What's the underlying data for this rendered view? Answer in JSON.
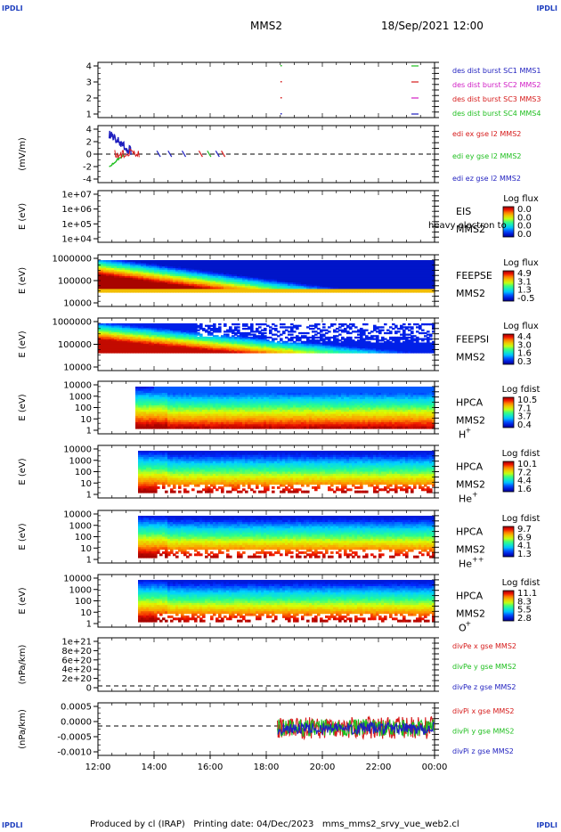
{
  "header": {
    "corner_text": "IPDLI",
    "title": "MMS2",
    "datetime": "18/Sep/2021 12:00"
  },
  "footer": {
    "text": "Produced by cl (IRAP)   Printing date: 04/Dec/2023   mms_mms2_srvy_vue_web2.cl"
  },
  "colors": {
    "mms1": "#1f1fbf",
    "mms2": "#d61a1a",
    "mms3": "#d11dc5",
    "mms4": "#1fbf1f"
  },
  "chart_data": {
    "type": "multi-panel",
    "x_ticks": [
      "12:00",
      "14:00",
      "16:00",
      "18:00",
      "20:00",
      "22:00",
      "00:00"
    ],
    "panels": [
      {
        "id": "des-dist",
        "type": "line",
        "yticks": [
          "4",
          "3",
          "2",
          "1"
        ],
        "ylim": [
          0.7,
          4.5
        ],
        "legend": [
          {
            "label": "des dist burst SC1 MMS1",
            "color": "#1f1fbf"
          },
          {
            "label": "des dist burst SC2 MMS2",
            "color": "#d11dc5"
          },
          {
            "label": "des dist burst SC3 MMS3",
            "color": "#d61a1a"
          },
          {
            "label": "des dist burst SC4 MMS4",
            "color": "#1fbf1f"
          }
        ]
      },
      {
        "id": "edi-e",
        "type": "line",
        "ylabel": "(mV/m)",
        "yticks": [
          "4",
          "2",
          "0",
          "-2",
          "-4"
        ],
        "ylim": [
          -4.5,
          4.5
        ],
        "legend": [
          {
            "label": "edi ex gse l2 MMS2",
            "color": "#d61a1a"
          },
          {
            "label": "edi ey gse l2 MMS2",
            "color": "#1fbf1f"
          },
          {
            "label": "edi ez gse l2 MMS2",
            "color": "#1f1fbf"
          }
        ]
      },
      {
        "id": "eis",
        "type": "heatmap",
        "ylabel": "E (eV)",
        "yticks": [
          "1e+07",
          "1e+06",
          "1e+05",
          "1e+04"
        ],
        "instrument": [
          "EIS",
          "MMS2"
        ],
        "overlay": "heavy electron to",
        "cbar_title": "Log flux",
        "cbar_ticks": [
          "0.0",
          "0.0",
          "0.0",
          "0.0"
        ]
      },
      {
        "id": "feepse",
        "type": "heatmap",
        "ylabel": "E (eV)",
        "yticks": [
          "1000000",
          "100000",
          "10000"
        ],
        "instrument": [
          "FEEPSE",
          "MMS2"
        ],
        "cbar_title": "Log flux",
        "cbar_ticks": [
          "4.9",
          "3.1",
          "1.3",
          "-0.5"
        ]
      },
      {
        "id": "feepsi",
        "type": "heatmap",
        "ylabel": "E (eV)",
        "yticks": [
          "1000000",
          "100000",
          "10000"
        ],
        "instrument": [
          "FEEPSI",
          "MMS2"
        ],
        "cbar_title": "Log flux",
        "cbar_ticks": [
          "4.4",
          "3.0",
          "1.6",
          "0.3"
        ]
      },
      {
        "id": "hpca-h",
        "type": "heatmap",
        "ylabel": "E (eV)",
        "yticks": [
          "10000",
          "1000",
          "100",
          "10",
          "1"
        ],
        "instrument": [
          "HPCA",
          "MMS2"
        ],
        "species": "H",
        "species_sup": "+",
        "cbar_title": "Log fdist",
        "cbar_ticks": [
          "10.5",
          "7.1",
          "3.7",
          "0.4"
        ]
      },
      {
        "id": "hpca-he",
        "type": "heatmap",
        "ylabel": "E (eV)",
        "yticks": [
          "10000",
          "1000",
          "100",
          "10",
          "1"
        ],
        "instrument": [
          "HPCA",
          "MMS2"
        ],
        "species": "He",
        "species_sup": "+",
        "cbar_title": "Log fdist",
        "cbar_ticks": [
          "10.1",
          "7.2",
          "4.4",
          "1.6"
        ]
      },
      {
        "id": "hpca-he2",
        "type": "heatmap",
        "ylabel": "E (eV)",
        "yticks": [
          "10000",
          "1000",
          "100",
          "10",
          "1"
        ],
        "instrument": [
          "HPCA",
          "MMS2"
        ],
        "species": "He",
        "species_sup": "++",
        "cbar_title": "Log fdist",
        "cbar_ticks": [
          "9.7",
          "6.9",
          "4.1",
          "1.3"
        ]
      },
      {
        "id": "hpca-o",
        "type": "heatmap",
        "ylabel": "E (eV)",
        "yticks": [
          "10000",
          "1000",
          "100",
          "10",
          "1"
        ],
        "instrument": [
          "HPCA",
          "MMS2"
        ],
        "species": "O",
        "species_sup": "+",
        "cbar_title": "Log fdist",
        "cbar_ticks": [
          "11.1",
          "8.3",
          "5.5",
          "2.8"
        ]
      },
      {
        "id": "divpe",
        "type": "line",
        "ylabel": "(nPa/km)",
        "yticks": [
          "1e+21",
          "8e+20",
          "6e+20",
          "4e+20",
          "2e+20",
          "0"
        ],
        "ylim": [
          -1e+19,
          1.05e+21
        ],
        "legend": [
          {
            "label": "divPe x gse MMS2",
            "color": "#d61a1a"
          },
          {
            "label": "divPe y gse MMS2",
            "color": "#1fbf1f"
          },
          {
            "label": "divPe z gse MMS2",
            "color": "#1f1fbf"
          }
        ]
      },
      {
        "id": "divpi",
        "type": "line",
        "ylabel": "(nPa/km)",
        "yticks": [
          "0.0005",
          "0.0000",
          "-0.0005",
          "-0.0010"
        ],
        "ylim": [
          -0.0011,
          0.00085
        ],
        "legend": [
          {
            "label": "divPi x gse MMS2",
            "color": "#d61a1a"
          },
          {
            "label": "divPi y gse MMS2",
            "color": "#1fbf1f"
          },
          {
            "label": "divPi z gse MMS2",
            "color": "#1f1fbf"
          }
        ]
      }
    ]
  }
}
